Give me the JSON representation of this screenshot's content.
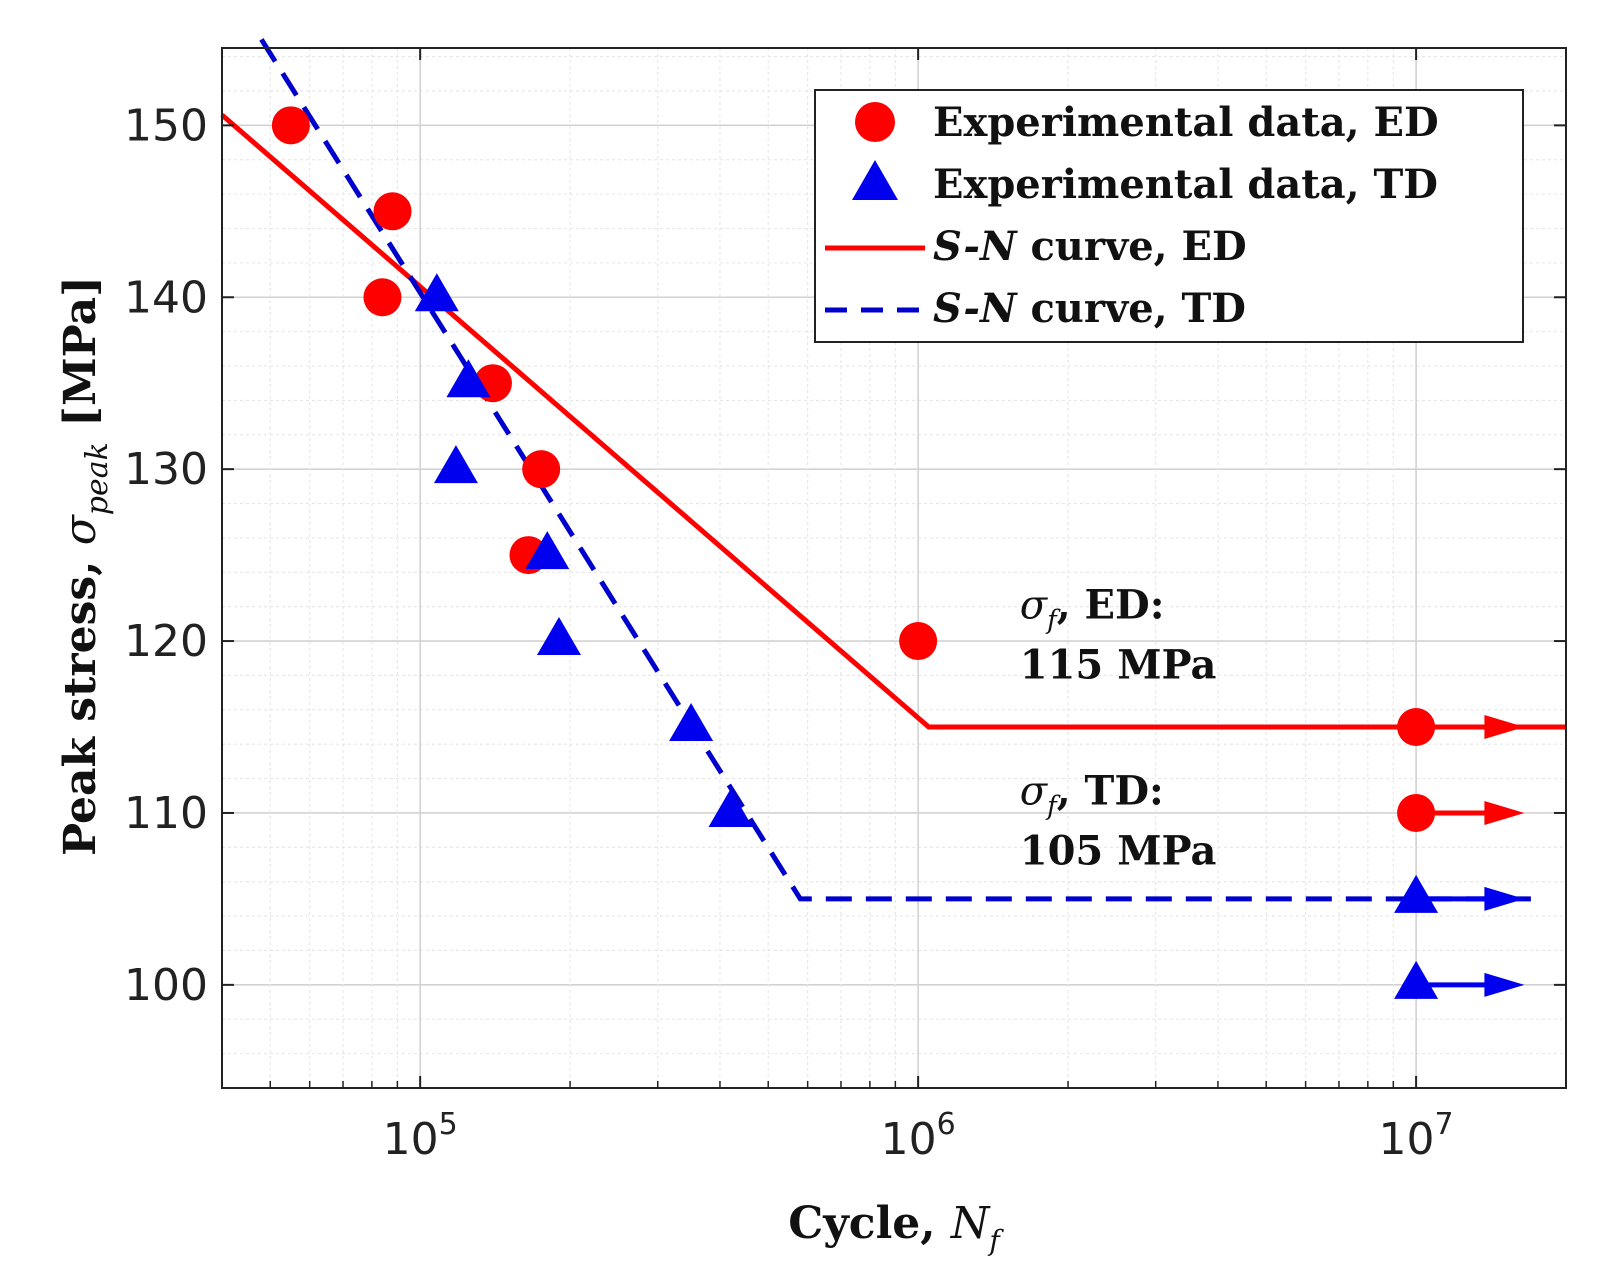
{
  "chart_data": {
    "type": "scatter",
    "x_scale": "log",
    "xlim": [
      40000,
      20000000
    ],
    "ylim": [
      94,
      154.5
    ],
    "yticks": [
      100,
      110,
      120,
      130,
      140,
      150
    ],
    "ytick_labels": [
      "100",
      "110",
      "120",
      "130",
      "140",
      "150"
    ],
    "xticks": [
      100000,
      1000000,
      10000000
    ],
    "xtick_labels": [
      {
        "base": "10",
        "exp": "5"
      },
      {
        "base": "10",
        "exp": "6"
      },
      {
        "base": "10",
        "exp": "7"
      }
    ],
    "ylabel": {
      "prefix": "Peak stress, ",
      "sym": "σ",
      "sub": "peak",
      "suffix": " [MPa]"
    },
    "xlabel": {
      "prefix": "Cycle, ",
      "sym": "N",
      "sub": "f"
    },
    "grid": true,
    "legend_position": "top-right",
    "series": [
      {
        "name": "Experimental data, ED",
        "kind": "scatter",
        "marker": "circle",
        "color": "#ff0000",
        "points": [
          {
            "x": 55000,
            "y": 150
          },
          {
            "x": 88000,
            "y": 145
          },
          {
            "x": 84000,
            "y": 140
          },
          {
            "x": 140000,
            "y": 135
          },
          {
            "x": 175000,
            "y": 130
          },
          {
            "x": 165000,
            "y": 125
          },
          {
            "x": 1000000,
            "y": 120
          },
          {
            "x": 10000000,
            "y": 115,
            "runout": true
          },
          {
            "x": 10000000,
            "y": 110,
            "runout": true
          }
        ]
      },
      {
        "name": "Experimental data, TD",
        "kind": "scatter",
        "marker": "triangle",
        "color": "#0000ee",
        "points": [
          {
            "x": 108000,
            "y": 140
          },
          {
            "x": 125000,
            "y": 135
          },
          {
            "x": 118000,
            "y": 130
          },
          {
            "x": 180000,
            "y": 125
          },
          {
            "x": 190000,
            "y": 120
          },
          {
            "x": 350000,
            "y": 115
          },
          {
            "x": 420000,
            "y": 110
          },
          {
            "x": 10000000,
            "y": 105,
            "runout": true
          },
          {
            "x": 10000000,
            "y": 100,
            "runout": true
          }
        ]
      },
      {
        "name": "curve, ED",
        "italic_prefix": "S-N",
        "kind": "line",
        "style": "solid",
        "color": "#ff0000",
        "points": [
          {
            "x": 40000,
            "y": 150.6
          },
          {
            "x": 1050000,
            "y": 115
          },
          {
            "x": 20000000,
            "y": 115
          }
        ]
      },
      {
        "name": "curve, TD",
        "italic_prefix": "S-N",
        "kind": "line",
        "style": "dashed",
        "color": "#0000cc",
        "points": [
          {
            "x": 48000,
            "y": 155
          },
          {
            "x": 580000,
            "y": 105
          },
          {
            "x": 17000000,
            "y": 105
          }
        ]
      }
    ],
    "annotations": [
      {
        "sym": "σ",
        "sub": "f",
        "line1": ", ED:",
        "line2": "115 MPa",
        "x": 1600000,
        "y": 121.3
      },
      {
        "sym": "σ",
        "sub": "f",
        "line1": ", TD:",
        "line2": "105 MPa",
        "x": 1600000,
        "y": 110.5
      }
    ],
    "runout_arrow_to_x": 16500000
  }
}
